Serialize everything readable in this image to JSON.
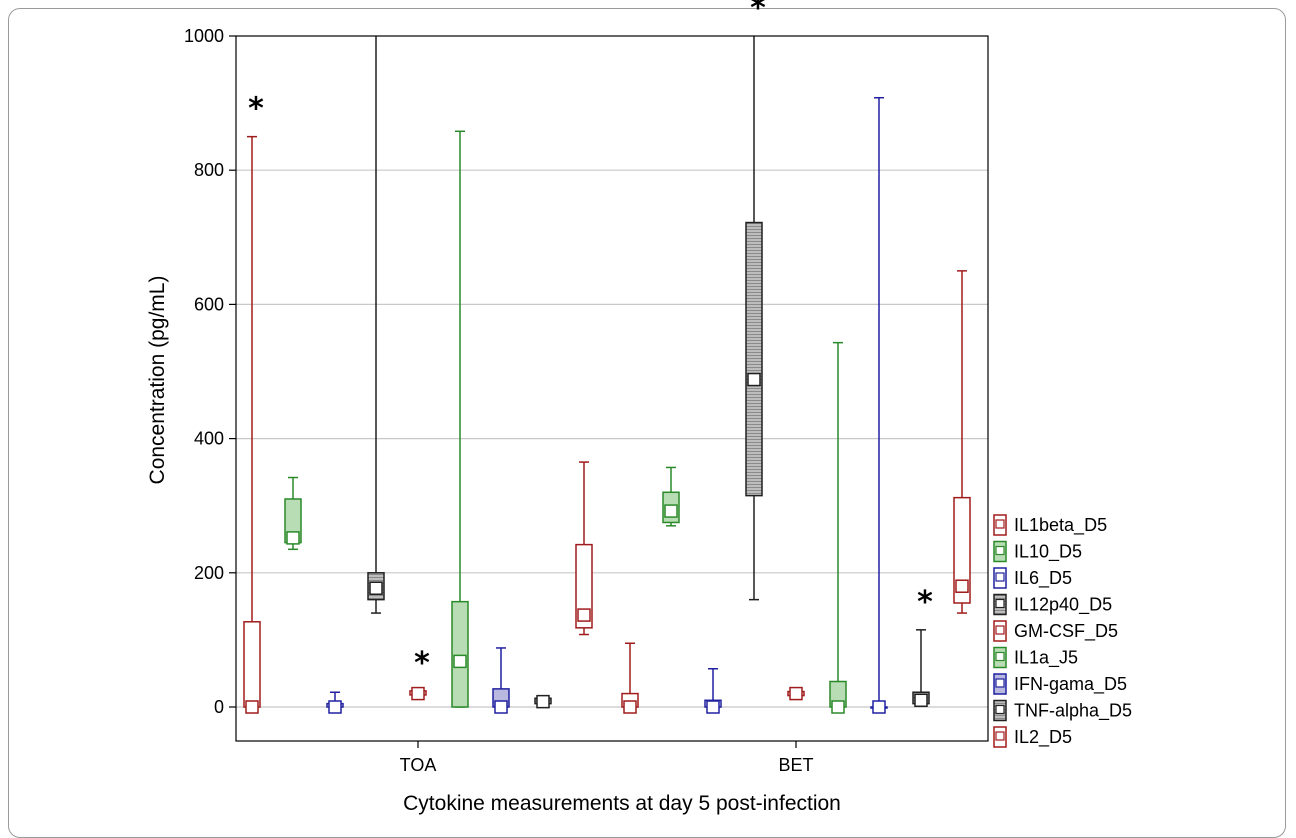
{
  "chart_data": {
    "type": "boxplot",
    "title": "",
    "xlabel": "Cytokine measurements at day 5 post-infection",
    "ylabel": "Concentration (pg/mL)",
    "ylim": [
      -50,
      1000
    ],
    "yticks": [
      "0",
      "200",
      "400",
      "600",
      "800",
      "1000"
    ],
    "ytick_values": [
      0,
      200,
      400,
      600,
      800,
      1000
    ],
    "grid": "horizontal",
    "legend_position": "right",
    "categories": [
      "TOA",
      "BET"
    ],
    "significance_marker": "*",
    "colors": {
      "IL1beta_D5": "#a01c1c",
      "IL10_D5": "#2a8a2a",
      "IL6_D5": "#2020a0",
      "IL12p40_D5": "#202020",
      "GM-CSF_D5": "#a01c1c",
      "IL1a_J5": "#2a8a2a",
      "IFN-gama_D5": "#2020a0",
      "TNF-alpha_D5": "#202020",
      "IL2_D5": "#a01c1c"
    },
    "series": [
      {
        "name": "IL1beta_D5",
        "fill": "none",
        "values": [
          {
            "group": "TOA",
            "min": 0,
            "q1": 0,
            "median": 0,
            "q3": 127,
            "max": 850,
            "star": true
          },
          {
            "group": "BET",
            "min": 0,
            "q1": 0,
            "median": 0,
            "q3": 20,
            "max": 95,
            "star": false
          }
        ]
      },
      {
        "name": "IL10_D5",
        "fill": "light",
        "values": [
          {
            "group": "TOA",
            "min": 235,
            "q1": 245,
            "median": 252,
            "q3": 310,
            "max": 342,
            "star": false
          },
          {
            "group": "BET",
            "min": 270,
            "q1": 275,
            "median": 292,
            "q3": 320,
            "max": 357,
            "star": false
          }
        ]
      },
      {
        "name": "IL6_D5",
        "fill": "none",
        "values": [
          {
            "group": "TOA",
            "min": 0,
            "q1": 0,
            "median": 0,
            "q3": 5,
            "max": 22,
            "star": false
          },
          {
            "group": "BET",
            "min": 0,
            "q1": 0,
            "median": 0,
            "q3": 10,
            "max": 57,
            "star": false
          }
        ]
      },
      {
        "name": "IL12p40_D5",
        "fill": "hatched",
        "values": [
          {
            "group": "TOA",
            "min": 140,
            "q1": 160,
            "median": 177,
            "q3": 200,
            "max": 1000,
            "star": false
          },
          {
            "group": "BET",
            "min": 160,
            "q1": 315,
            "median": 488,
            "q3": 722,
            "max": 1000,
            "star": true
          }
        ]
      },
      {
        "name": "GM-CSF_D5",
        "fill": "none",
        "values": [
          {
            "group": "TOA",
            "min": 18,
            "q1": 18,
            "median": 20,
            "q3": 24,
            "max": 24,
            "star": true
          },
          {
            "group": "BET",
            "min": 17,
            "q1": 17,
            "median": 20,
            "q3": 23,
            "max": 23,
            "star": false
          }
        ]
      },
      {
        "name": "IL1a_J5",
        "fill": "light",
        "values": [
          {
            "group": "TOA",
            "min": 0,
            "q1": 0,
            "median": 68,
            "q3": 157,
            "max": 858,
            "star": false
          },
          {
            "group": "BET",
            "min": 0,
            "q1": 0,
            "median": 0,
            "q3": 38,
            "max": 543,
            "star": false
          }
        ]
      },
      {
        "name": "IFN-gama_D5",
        "fill": "light",
        "values": [
          {
            "group": "TOA",
            "min": 0,
            "q1": 0,
            "median": 0,
            "q3": 27,
            "max": 88,
            "star": false
          },
          {
            "group": "BET",
            "min": 0,
            "q1": 0,
            "median": 0,
            "q3": 0,
            "max": 908,
            "star": false
          }
        ]
      },
      {
        "name": "TNF-alpha_D5",
        "fill": "hatched",
        "values": [
          {
            "group": "TOA",
            "min": 5,
            "q1": 5,
            "median": 8,
            "q3": 13,
            "max": 13,
            "star": false
          },
          {
            "group": "BET",
            "min": 5,
            "q1": 5,
            "median": 10,
            "q3": 22,
            "max": 115,
            "star": true
          }
        ]
      },
      {
        "name": "IL2_D5",
        "fill": "none",
        "values": [
          {
            "group": "TOA",
            "min": 108,
            "q1": 118,
            "median": 137,
            "q3": 242,
            "max": 365,
            "star": false
          },
          {
            "group": "BET",
            "min": 140,
            "q1": 155,
            "median": 180,
            "q3": 312,
            "max": 650,
            "star": false
          }
        ]
      }
    ]
  }
}
